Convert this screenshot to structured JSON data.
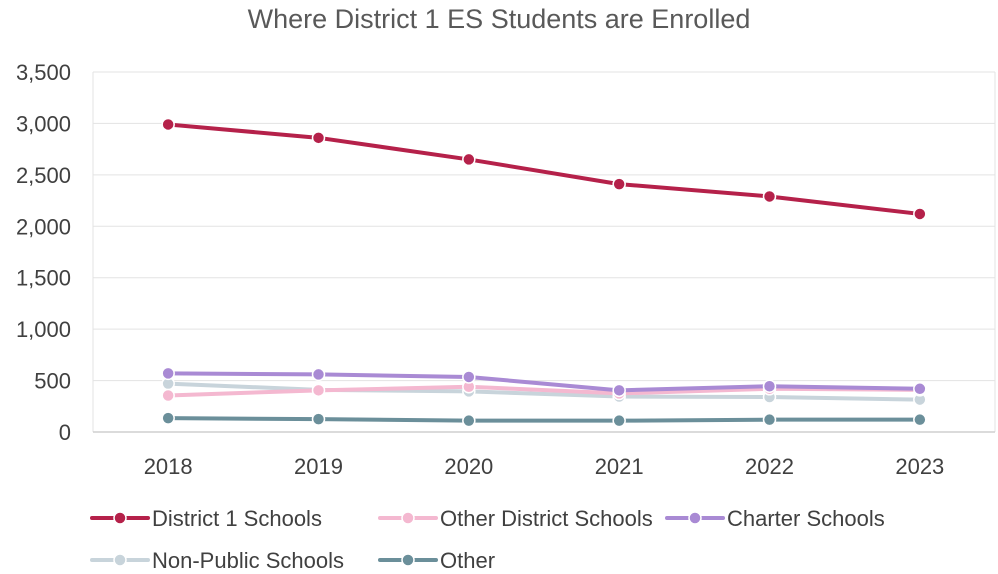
{
  "chart_data": {
    "type": "line",
    "title": "Where District 1 ES Students are Enrolled",
    "xlabel": "",
    "ylabel": "",
    "x": [
      "2018",
      "2019",
      "2020",
      "2021",
      "2022",
      "2023"
    ],
    "ylim": [
      0,
      3500
    ],
    "yticks": [
      0,
      500,
      1000,
      1500,
      2000,
      2500,
      3000,
      3500
    ],
    "ytick_labels": [
      "0",
      "500",
      "1,000",
      "1,500",
      "2,000",
      "2,500",
      "3,000",
      "3,500"
    ],
    "grid": true,
    "legend_position": "bottom",
    "series": [
      {
        "name": "District 1 Schools",
        "color": "#b5214a",
        "values": [
          2990,
          2860,
          2650,
          2410,
          2290,
          2120
        ]
      },
      {
        "name": "Other District Schools",
        "color": "#f4b8d0",
        "values": [
          355,
          405,
          440,
          375,
          420,
          410
        ]
      },
      {
        "name": "Charter Schools",
        "color": "#a98ad4",
        "values": [
          570,
          560,
          535,
          405,
          445,
          420
        ]
      },
      {
        "name": "Non-Public Schools",
        "color": "#c8d4db",
        "values": [
          470,
          410,
          395,
          345,
          340,
          315
        ]
      },
      {
        "name": "Other",
        "color": "#6b8f9a",
        "values": [
          135,
          125,
          110,
          110,
          120,
          120
        ]
      }
    ]
  }
}
